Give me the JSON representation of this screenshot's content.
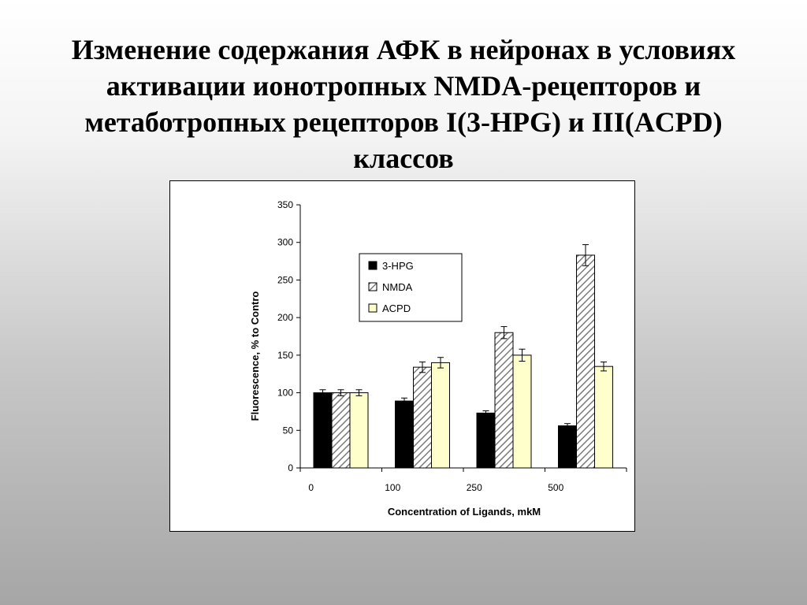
{
  "slide": {
    "title": "Изменение содержания АФК в нейронах в условиях активации ионотропных NMDA-рецепторов и метаботропных рецепторов I(3-HPG) и III(ACPD) классов"
  },
  "chart_data": {
    "type": "bar",
    "categories": [
      "0",
      "100",
      "250",
      "500"
    ],
    "series": [
      {
        "name": "3-HPG",
        "values": [
          100,
          89,
          73,
          56
        ],
        "errors": [
          4,
          4,
          3,
          3
        ],
        "color": "#000000",
        "fill": "solid"
      },
      {
        "name": "NMDA",
        "values": [
          100,
          134,
          180,
          283
        ],
        "errors": [
          4,
          7,
          8,
          14
        ],
        "color": "#9a9a9a",
        "fill": "hatched"
      },
      {
        "name": "ACPD",
        "values": [
          100,
          140,
          150,
          135
        ],
        "errors": [
          4,
          7,
          8,
          6
        ],
        "color": "#ffffcc",
        "fill": "solid"
      }
    ],
    "xlabel": "Concentration of Ligands, mkM",
    "ylabel": "Fluorescence, % to Contro",
    "ylim": [
      0,
      350
    ],
    "yticks": [
      0,
      50,
      100,
      150,
      200,
      250,
      300,
      350
    ],
    "legend_position": "upper-left"
  }
}
